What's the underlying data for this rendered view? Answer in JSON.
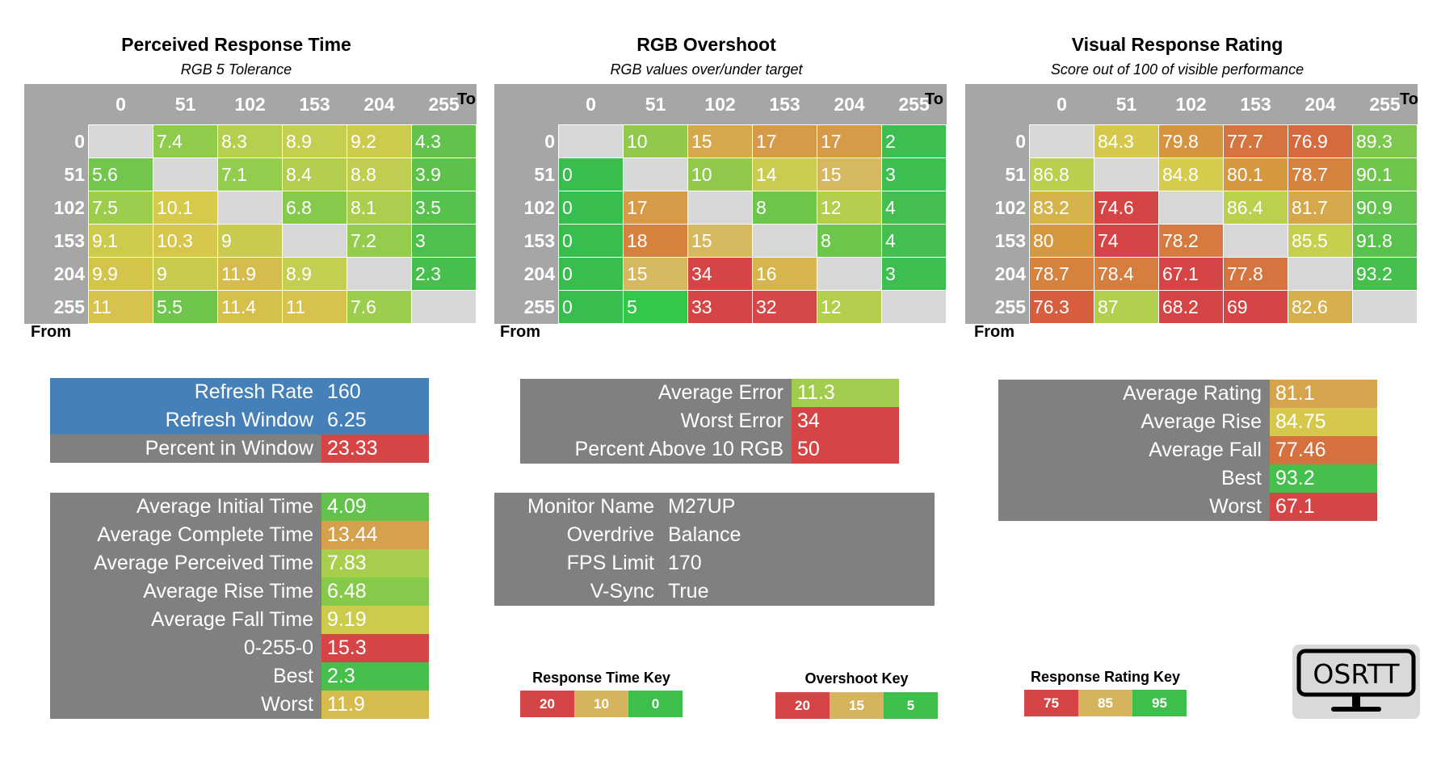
{
  "colors": {
    "green": "#3cbf4b",
    "light_green": "#92d050",
    "yellow_green": "#c5d556",
    "yellow": "#d6c84d",
    "amber": "#d9a24e",
    "orange": "#d8763f",
    "red": "#d64545",
    "gray": "#808080",
    "light_gray": "#a6a6a6",
    "blue": "#4581b8"
  },
  "axis": {
    "to": "To",
    "from": "From"
  },
  "headers": [
    "0",
    "51",
    "102",
    "153",
    "204",
    "255"
  ],
  "tables": [
    {
      "title": "Perceived Response Time",
      "subtitle": "RGB 5 Tolerance",
      "rows": [
        {
          "label": "0",
          "cells": [
            {
              "v": "",
              "c": "diag"
            },
            {
              "v": "7.4",
              "c": "#8fcc4c"
            },
            {
              "v": "8.3",
              "c": "#b7cf4e"
            },
            {
              "v": "8.9",
              "c": "#c4ce50"
            },
            {
              "v": "9.2",
              "c": "#cccb4e"
            },
            {
              "v": "4.3",
              "c": "#62c24c"
            }
          ]
        },
        {
          "label": "51",
          "cells": [
            {
              "v": "5.6",
              "c": "#72c64c"
            },
            {
              "v": "",
              "c": "diag"
            },
            {
              "v": "7.1",
              "c": "#92cd4d"
            },
            {
              "v": "8.4",
              "c": "#b3ce4e"
            },
            {
              "v": "8.8",
              "c": "#c0cd50"
            },
            {
              "v": "3.9",
              "c": "#5cc24c"
            }
          ]
        },
        {
          "label": "102",
          "cells": [
            {
              "v": "7.5",
              "c": "#9ccd4d"
            },
            {
              "v": "10.1",
              "c": "#d6ca4c"
            },
            {
              "v": "",
              "c": "diag"
            },
            {
              "v": "6.8",
              "c": "#86ca4c"
            },
            {
              "v": "8.1",
              "c": "#acce4e"
            },
            {
              "v": "3.5",
              "c": "#56c14c"
            }
          ]
        },
        {
          "label": "153",
          "cells": [
            {
              "v": "9.1",
              "c": "#cccb4e"
            },
            {
              "v": "10.3",
              "c": "#d6c64c"
            },
            {
              "v": "9",
              "c": "#c8cb4f"
            },
            {
              "v": "",
              "c": "diag"
            },
            {
              "v": "7.2",
              "c": "#94cd4d"
            },
            {
              "v": "3",
              "c": "#50c04c"
            }
          ]
        },
        {
          "label": "204",
          "cells": [
            {
              "v": "9.9",
              "c": "#d4c44c"
            },
            {
              "v": "9",
              "c": "#c8cb4f"
            },
            {
              "v": "11.9",
              "c": "#d6bc4c"
            },
            {
              "v": "8.9",
              "c": "#c4ce50"
            },
            {
              "v": "",
              "c": "diag"
            },
            {
              "v": "2.3",
              "c": "#46bf4c"
            }
          ]
        },
        {
          "label": "255",
          "cells": [
            {
              "v": "11",
              "c": "#d6c24c"
            },
            {
              "v": "5.5",
              "c": "#70c64c"
            },
            {
              "v": "11.4",
              "c": "#d6c04c"
            },
            {
              "v": "11",
              "c": "#d6c24c"
            },
            {
              "v": "7.6",
              "c": "#9ccd4d"
            },
            {
              "v": "",
              "c": "diag"
            }
          ]
        }
      ]
    },
    {
      "title": "RGB Overshoot",
      "subtitle": "RGB values over/under target",
      "rows": [
        {
          "label": "0",
          "cells": [
            {
              "v": "",
              "c": "diag"
            },
            {
              "v": "10",
              "c": "#92c94c"
            },
            {
              "v": "15",
              "c": "#d6a84c"
            },
            {
              "v": "17",
              "c": "#d69a48"
            },
            {
              "v": "17",
              "c": "#d69a48"
            },
            {
              "v": "2",
              "c": "#3cbf50"
            }
          ]
        },
        {
          "label": "51",
          "cells": [
            {
              "v": "0",
              "c": "#38bd4f"
            },
            {
              "v": "",
              "c": "diag"
            },
            {
              "v": "10",
              "c": "#92c94c"
            },
            {
              "v": "14",
              "c": "#c9cc50"
            },
            {
              "v": "15",
              "c": "#d6b860"
            },
            {
              "v": "3",
              "c": "#3cbf50"
            }
          ]
        },
        {
          "label": "102",
          "cells": [
            {
              "v": "0",
              "c": "#38bd4f"
            },
            {
              "v": "17",
              "c": "#d69a48"
            },
            {
              "v": "",
              "c": "diag"
            },
            {
              "v": "8",
              "c": "#6dc64c"
            },
            {
              "v": "12",
              "c": "#b4ce4e"
            },
            {
              "v": "4",
              "c": "#44bf4f"
            }
          ]
        },
        {
          "label": "153",
          "cells": [
            {
              "v": "0",
              "c": "#38bd4f"
            },
            {
              "v": "18",
              "c": "#d6823f"
            },
            {
              "v": "15",
              "c": "#d6b860"
            },
            {
              "v": "",
              "c": "diag"
            },
            {
              "v": "8",
              "c": "#6dc64c"
            },
            {
              "v": "4",
              "c": "#44bf4f"
            }
          ]
        },
        {
          "label": "204",
          "cells": [
            {
              "v": "0",
              "c": "#38bd4f"
            },
            {
              "v": "15",
              "c": "#d6b860"
            },
            {
              "v": "34",
              "c": "#d64545"
            },
            {
              "v": "16",
              "c": "#d6b64c"
            },
            {
              "v": "",
              "c": "diag"
            },
            {
              "v": "3",
              "c": "#3cbf50"
            }
          ]
        },
        {
          "label": "255",
          "cells": [
            {
              "v": "0",
              "c": "#38bd4f"
            },
            {
              "v": "5",
              "c": "#34c84a"
            },
            {
              "v": "33",
              "c": "#d64545"
            },
            {
              "v": "32",
              "c": "#d64848"
            },
            {
              "v": "12",
              "c": "#b4ce4e"
            },
            {
              "v": "",
              "c": "diag"
            }
          ]
        }
      ]
    },
    {
      "title": "Visual Response Rating",
      "subtitle": "Score out of 100 of visible performance",
      "rows": [
        {
          "label": "0",
          "cells": [
            {
              "v": "",
              "c": "diag"
            },
            {
              "v": "84.3",
              "c": "#d6c84c"
            },
            {
              "v": "79.8",
              "c": "#d6943f"
            },
            {
              "v": "77.7",
              "c": "#d6743f"
            },
            {
              "v": "76.9",
              "c": "#d66a3f"
            },
            {
              "v": "89.3",
              "c": "#7cc84c"
            }
          ]
        },
        {
          "label": "51",
          "cells": [
            {
              "v": "86.8",
              "c": "#b9cf4e"
            },
            {
              "v": "",
              "c": "diag"
            },
            {
              "v": "84.8",
              "c": "#d6cc4c"
            },
            {
              "v": "80.1",
              "c": "#d6983f"
            },
            {
              "v": "78.7",
              "c": "#d6823f"
            },
            {
              "v": "90.1",
              "c": "#70c64c"
            }
          ]
        },
        {
          "label": "102",
          "cells": [
            {
              "v": "83.2",
              "c": "#d6b44c"
            },
            {
              "v": "74.6",
              "c": "#d64545"
            },
            {
              "v": "",
              "c": "diag"
            },
            {
              "v": "86.4",
              "c": "#bcd050"
            },
            {
              "v": "81.7",
              "c": "#d6a84c"
            },
            {
              "v": "90.9",
              "c": "#62c44c"
            }
          ]
        },
        {
          "label": "153",
          "cells": [
            {
              "v": "80",
              "c": "#d6983f"
            },
            {
              "v": "74",
              "c": "#d64545"
            },
            {
              "v": "78.2",
              "c": "#d67a3f"
            },
            {
              "v": "",
              "c": "diag"
            },
            {
              "v": "85.5",
              "c": "#c6cf4e"
            },
            {
              "v": "91.8",
              "c": "#58c24c"
            }
          ]
        },
        {
          "label": "204",
          "cells": [
            {
              "v": "78.7",
              "c": "#d6823f"
            },
            {
              "v": "78.4",
              "c": "#d67e3f"
            },
            {
              "v": "67.1",
              "c": "#d64545"
            },
            {
              "v": "77.8",
              "c": "#d6743f"
            },
            {
              "v": "",
              "c": "diag"
            },
            {
              "v": "93.2",
              "c": "#46c04c"
            }
          ]
        },
        {
          "label": "255",
          "cells": [
            {
              "v": "76.3",
              "c": "#d65e3f"
            },
            {
              "v": "87",
              "c": "#b2cf4e"
            },
            {
              "v": "68.2",
              "c": "#d64545"
            },
            {
              "v": "69",
              "c": "#d64545"
            },
            {
              "v": "82.6",
              "c": "#d6b04c"
            },
            {
              "v": "",
              "c": "diag"
            }
          ]
        }
      ]
    }
  ],
  "refresh": [
    {
      "label": "Refresh Rate",
      "value": "160",
      "kbg": "#4581b8",
      "vbg": "#4581b8"
    },
    {
      "label": "Refresh Window",
      "value": "6.25",
      "kbg": "#4581b8",
      "vbg": "#4581b8"
    },
    {
      "label": "Percent in Window",
      "value": "23.33",
      "kbg": "#808080",
      "vbg": "#d64545"
    }
  ],
  "times": [
    {
      "label": "Average Initial Time",
      "value": "4.09",
      "vbg": "#62c24c"
    },
    {
      "label": "Average Complete Time",
      "value": "13.44",
      "vbg": "#d6a14c"
    },
    {
      "label": "Average Perceived Time",
      "value": "7.83",
      "vbg": "#a8ce4e"
    },
    {
      "label": "Average Rise Time",
      "value": "6.48",
      "vbg": "#86ca4c"
    },
    {
      "label": "Average Fall Time",
      "value": "9.19",
      "vbg": "#cccb4e"
    },
    {
      "label": "0-255-0",
      "value": "15.3",
      "vbg": "#d64545"
    },
    {
      "label": "Best",
      "value": "2.3",
      "vbg": "#46bf4c"
    },
    {
      "label": "Worst",
      "value": "11.9",
      "vbg": "#d6bc4c"
    }
  ],
  "errors": [
    {
      "label": "Average Error",
      "value": "11.3",
      "vbg": "#a2cc4e"
    },
    {
      "label": "Worst Error",
      "value": "34",
      "vbg": "#d64545"
    },
    {
      "label": "Percent Above 10 RGB",
      "value": "50",
      "vbg": "#d64545"
    }
  ],
  "monitor": [
    {
      "label": "Monitor Name",
      "value": "M27UP"
    },
    {
      "label": "Overdrive",
      "value": "Balance"
    },
    {
      "label": "FPS Limit",
      "value": "170"
    },
    {
      "label": "V-Sync",
      "value": "True"
    }
  ],
  "ratings": [
    {
      "label": "Average Rating",
      "value": "81.1",
      "vbg": "#d6a44c"
    },
    {
      "label": "Average Rise",
      "value": "84.75",
      "vbg": "#d6c84c"
    },
    {
      "label": "Average Fall",
      "value": "77.46",
      "vbg": "#d6703f"
    },
    {
      "label": "Best",
      "value": "93.2",
      "vbg": "#46c04c"
    },
    {
      "label": "Worst",
      "value": "67.1",
      "vbg": "#d64545"
    }
  ],
  "keys": [
    {
      "title": "Response Time Key",
      "items": [
        "20",
        "10",
        "0"
      ]
    },
    {
      "title": "Overshoot Key",
      "items": [
        "20",
        "15",
        "5"
      ]
    },
    {
      "title": "Response Rating Key",
      "items": [
        "75",
        "85",
        "95"
      ]
    }
  ],
  "key_colors": [
    "#d64545",
    "#d6b45e",
    "#3cbf4b"
  ],
  "logo": {
    "text": "OSRTT",
    "icon": "monitor-icon"
  }
}
